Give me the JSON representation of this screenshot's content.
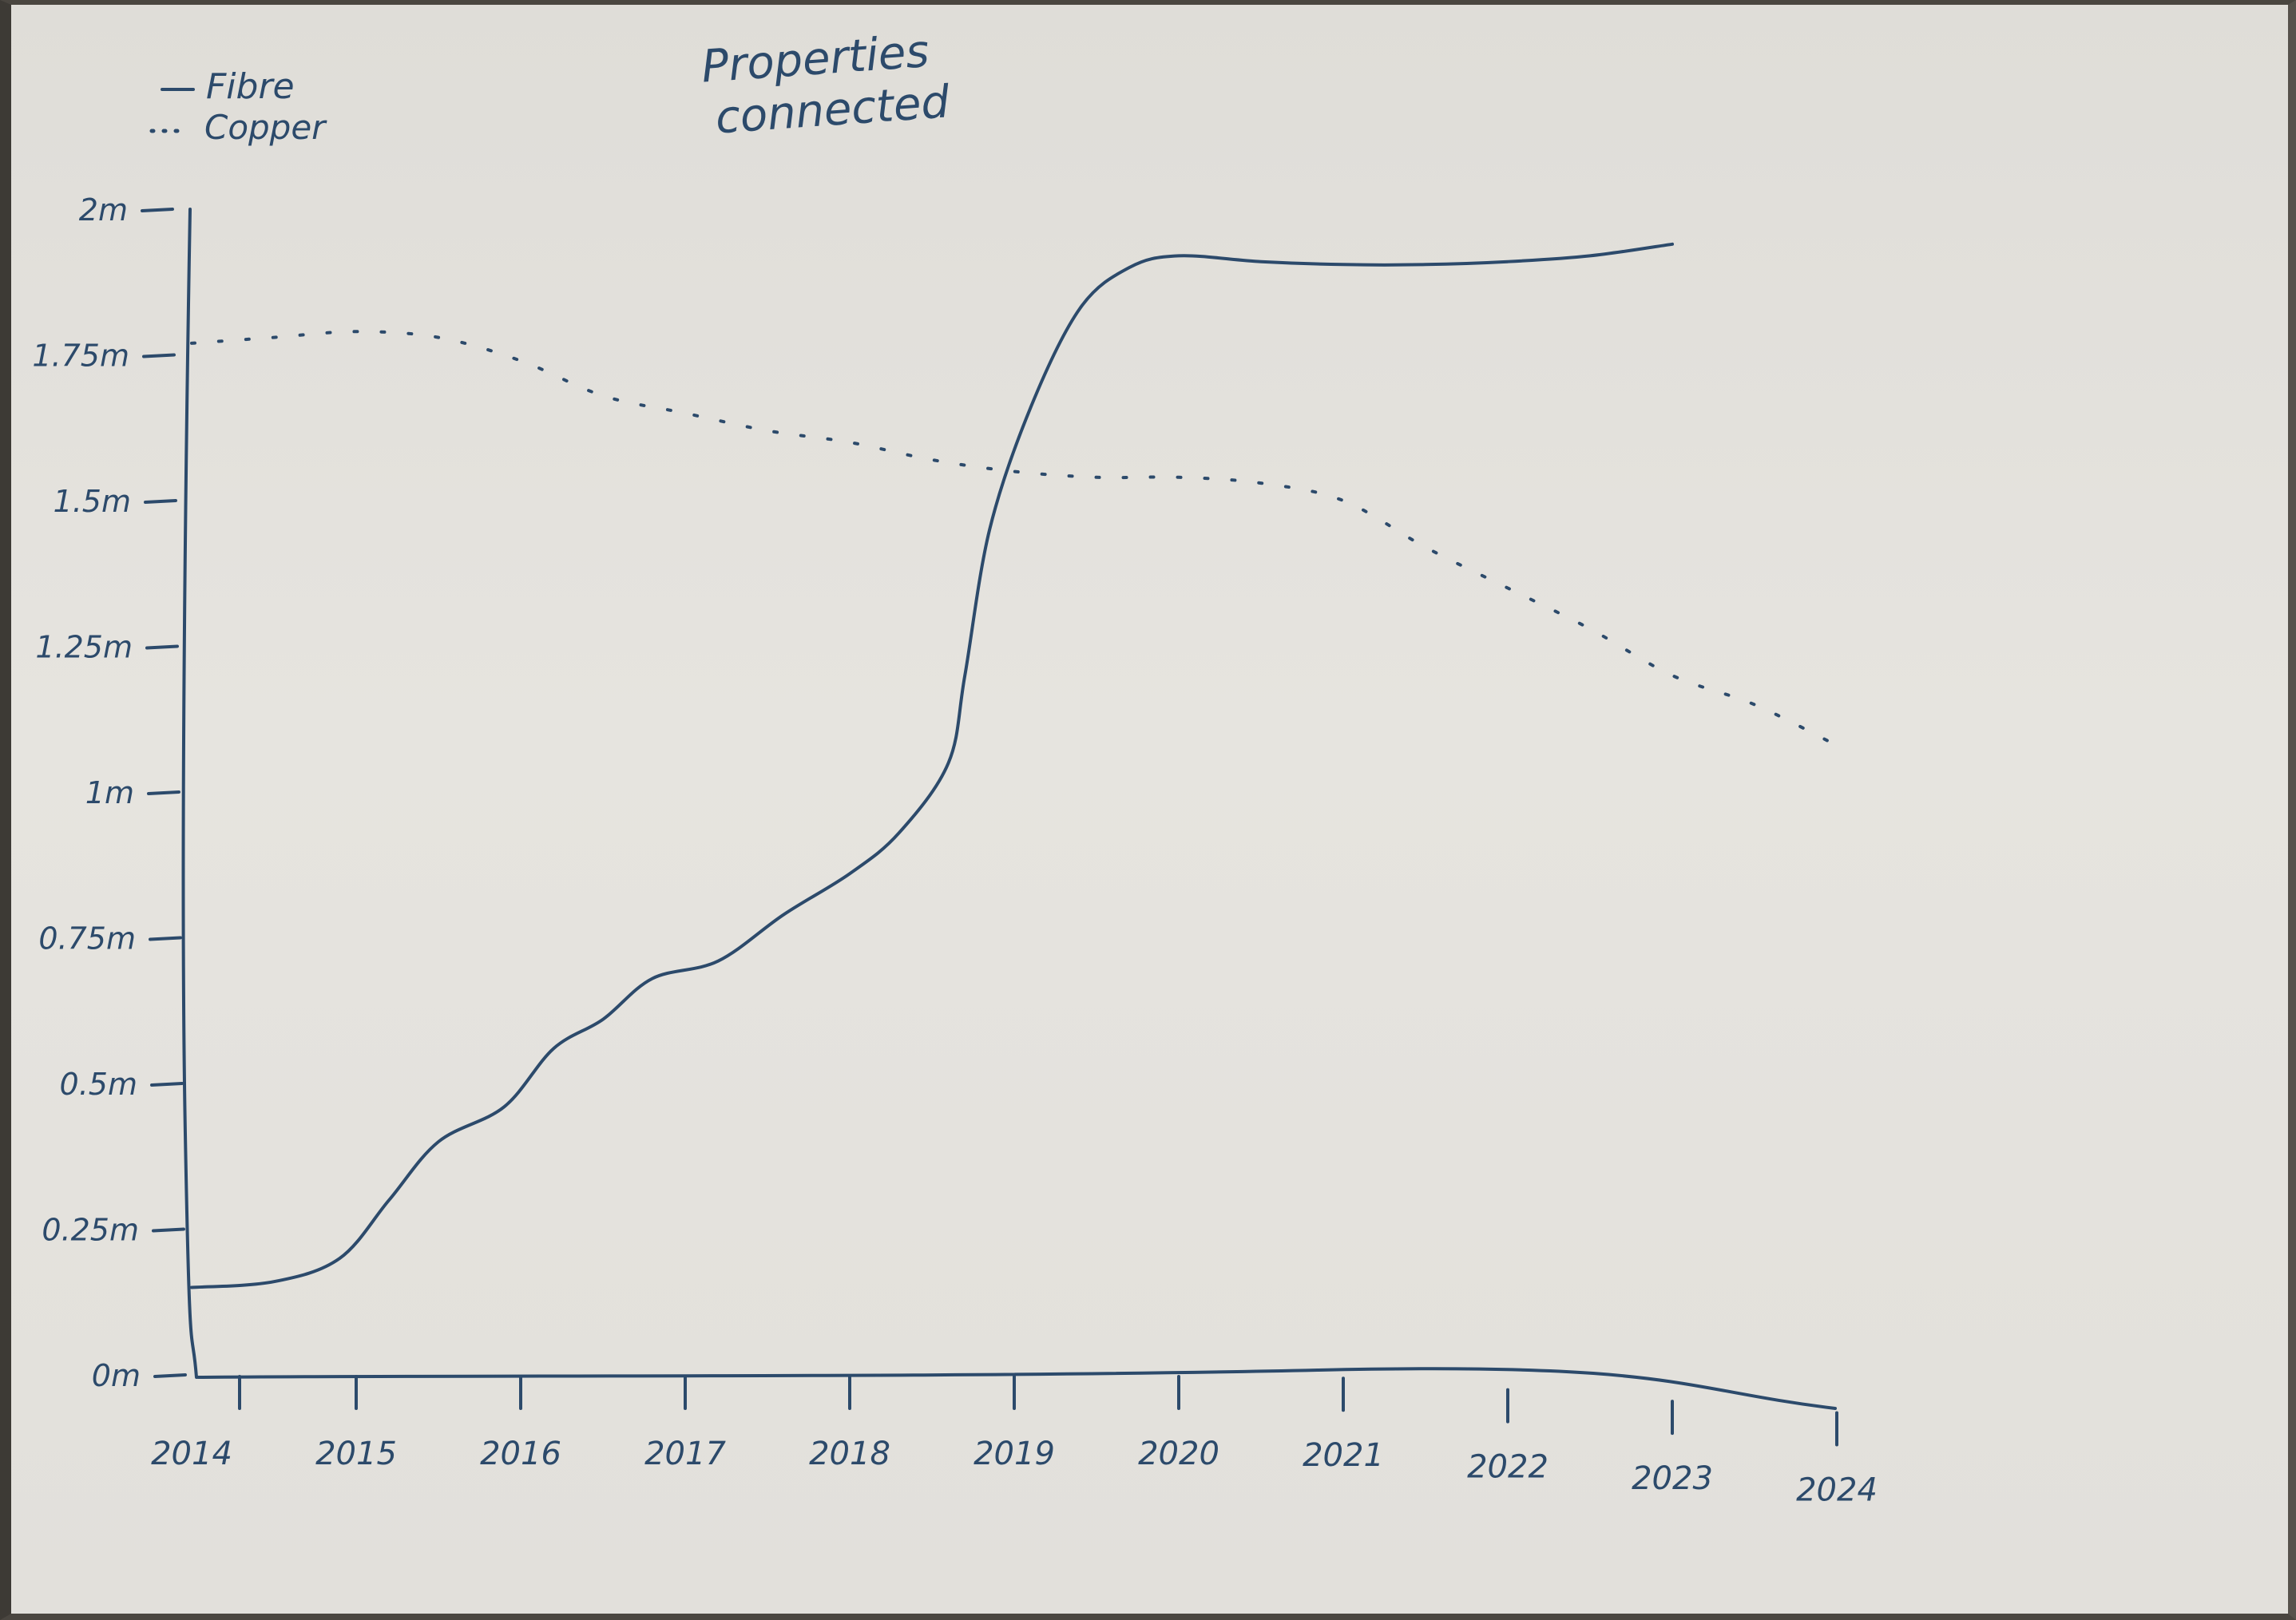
{
  "colors": {
    "ink": "#2c4a6b",
    "paper": "#e4e2dd"
  },
  "chart_data": {
    "type": "line",
    "title": [
      "Properties",
      "connected"
    ],
    "xlabel": "",
    "ylabel": "",
    "grid": false,
    "legend_position": "top-left",
    "x_ticks": [
      "2014",
      "2015",
      "2016",
      "2017",
      "2018",
      "2019",
      "2020",
      "2021",
      "2022",
      "2023",
      "2024"
    ],
    "y_ticks": [
      "0m",
      "0.25m",
      "0.5m",
      "0.75m",
      "1m",
      "1.25m",
      "1.5m",
      "1.75m",
      "2m"
    ],
    "xlim": [
      2014,
      2024
    ],
    "ylim": [
      0,
      2000000
    ],
    "series": [
      {
        "name": "Fibre",
        "style": "solid",
        "points": [
          [
            2014.0,
            150000
          ],
          [
            2014.5,
            160000
          ],
          [
            2014.9,
            200000
          ],
          [
            2015.2,
            300000
          ],
          [
            2015.5,
            400000
          ],
          [
            2015.9,
            460000
          ],
          [
            2016.2,
            560000
          ],
          [
            2016.5,
            610000
          ],
          [
            2016.8,
            680000
          ],
          [
            2017.2,
            710000
          ],
          [
            2017.6,
            790000
          ],
          [
            2018.0,
            860000
          ],
          [
            2018.3,
            930000
          ],
          [
            2018.6,
            1050000
          ],
          [
            2018.7,
            1200000
          ],
          [
            2018.85,
            1450000
          ],
          [
            2019.1,
            1660000
          ],
          [
            2019.4,
            1830000
          ],
          [
            2019.7,
            1900000
          ],
          [
            2020.0,
            1920000
          ],
          [
            2020.5,
            1910000
          ],
          [
            2021.0,
            1905000
          ],
          [
            2021.5,
            1905000
          ],
          [
            2022.0,
            1910000
          ],
          [
            2022.5,
            1920000
          ],
          [
            2023.0,
            1940000
          ]
        ]
      },
      {
        "name": "Copper",
        "style": "dotted",
        "points": [
          [
            2014.0,
            1770000
          ],
          [
            2014.5,
            1780000
          ],
          [
            2015.0,
            1790000
          ],
          [
            2015.5,
            1780000
          ],
          [
            2016.0,
            1740000
          ],
          [
            2016.5,
            1680000
          ],
          [
            2017.0,
            1650000
          ],
          [
            2017.5,
            1620000
          ],
          [
            2018.0,
            1600000
          ],
          [
            2018.5,
            1570000
          ],
          [
            2019.0,
            1550000
          ],
          [
            2019.5,
            1540000
          ],
          [
            2020.0,
            1540000
          ],
          [
            2020.5,
            1530000
          ],
          [
            2021.0,
            1500000
          ],
          [
            2021.5,
            1420000
          ],
          [
            2022.0,
            1350000
          ],
          [
            2022.5,
            1280000
          ],
          [
            2023.0,
            1200000
          ],
          [
            2023.5,
            1150000
          ],
          [
            2024.0,
            1080000
          ]
        ]
      }
    ]
  }
}
